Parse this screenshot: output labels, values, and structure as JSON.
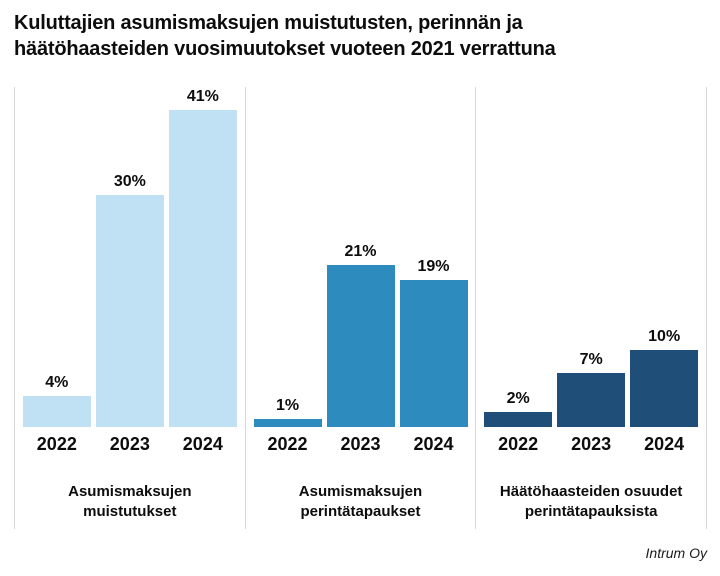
{
  "title": "Kuluttajien asumismaksujen muistutusten, perinnän ja häätöhaasteiden vuosimuutokset vuoteen 2021 verrattuna",
  "source": "Intrum Oy",
  "colors": {
    "group1": "#c0e1f4",
    "group2": "#2e8bbd",
    "group3": "#1f4e79",
    "divider": "#d7d7d7",
    "text": "#0d0d0d"
  },
  "chart_data": {
    "type": "bar",
    "unit": "%",
    "categories": [
      "2022",
      "2023",
      "2024"
    ],
    "groups": [
      {
        "label": "Asumismaksujen muistutukset",
        "color": "#c0e1f4",
        "values": [
          4,
          30,
          41
        ],
        "value_labels": [
          "4%",
          "30%",
          "41%"
        ]
      },
      {
        "label": "Asumismaksujen perintätapaukset",
        "color": "#2e8bbd",
        "values": [
          1,
          21,
          19
        ],
        "value_labels": [
          "1%",
          "21%",
          "19%"
        ]
      },
      {
        "label": "Häätöhaasteiden osuudet perintätapauksista",
        "color": "#1f4e79",
        "values": [
          2,
          7,
          10
        ],
        "value_labels": [
          "2%",
          "7%",
          "10%"
        ]
      }
    ],
    "ylim": [
      0,
      44
    ],
    "grid": false,
    "legend": false
  }
}
